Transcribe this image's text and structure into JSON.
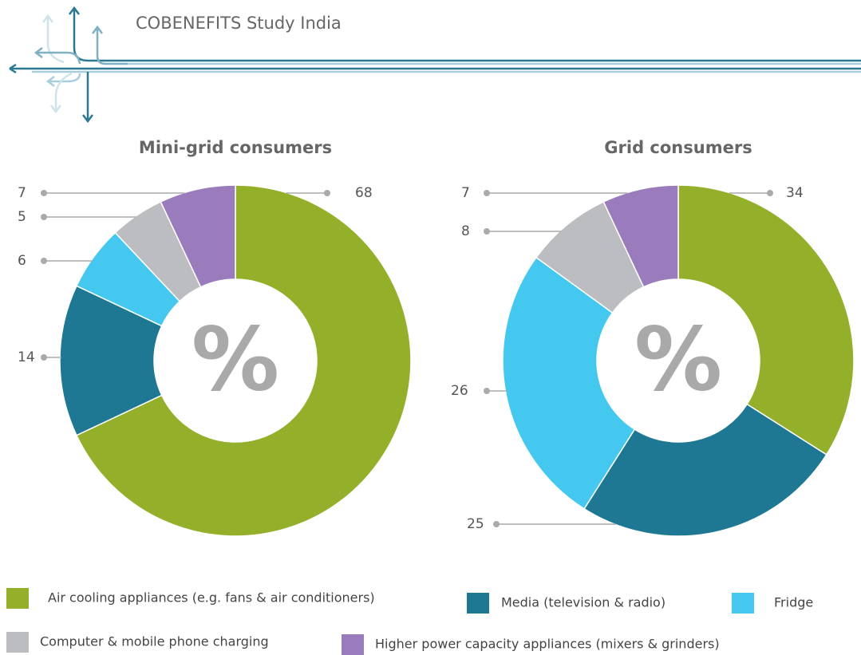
{
  "header": {
    "title": "COBENEFITS Study India"
  },
  "chart_data": [
    {
      "type": "pie",
      "title": "Mini-grid consumers",
      "center_label": "%",
      "values": [
        68,
        14,
        6,
        5,
        7
      ]
    },
    {
      "type": "pie",
      "title": "Grid consumers",
      "center_label": "%",
      "values": [
        34,
        25,
        26,
        8,
        7
      ]
    }
  ],
  "legend": {
    "categories": [
      "Air cooling appliances (e.g. fans & air conditioners)",
      "Media (television & radio)",
      "Fridge",
      "Computer & mobile phone charging",
      "Higher power capacity appliances (mixers & grinders)"
    ],
    "colors": [
      "#94b02a",
      "#1f7893",
      "#45c8f0",
      "#bcbdc0",
      "#9a7bbb"
    ]
  }
}
